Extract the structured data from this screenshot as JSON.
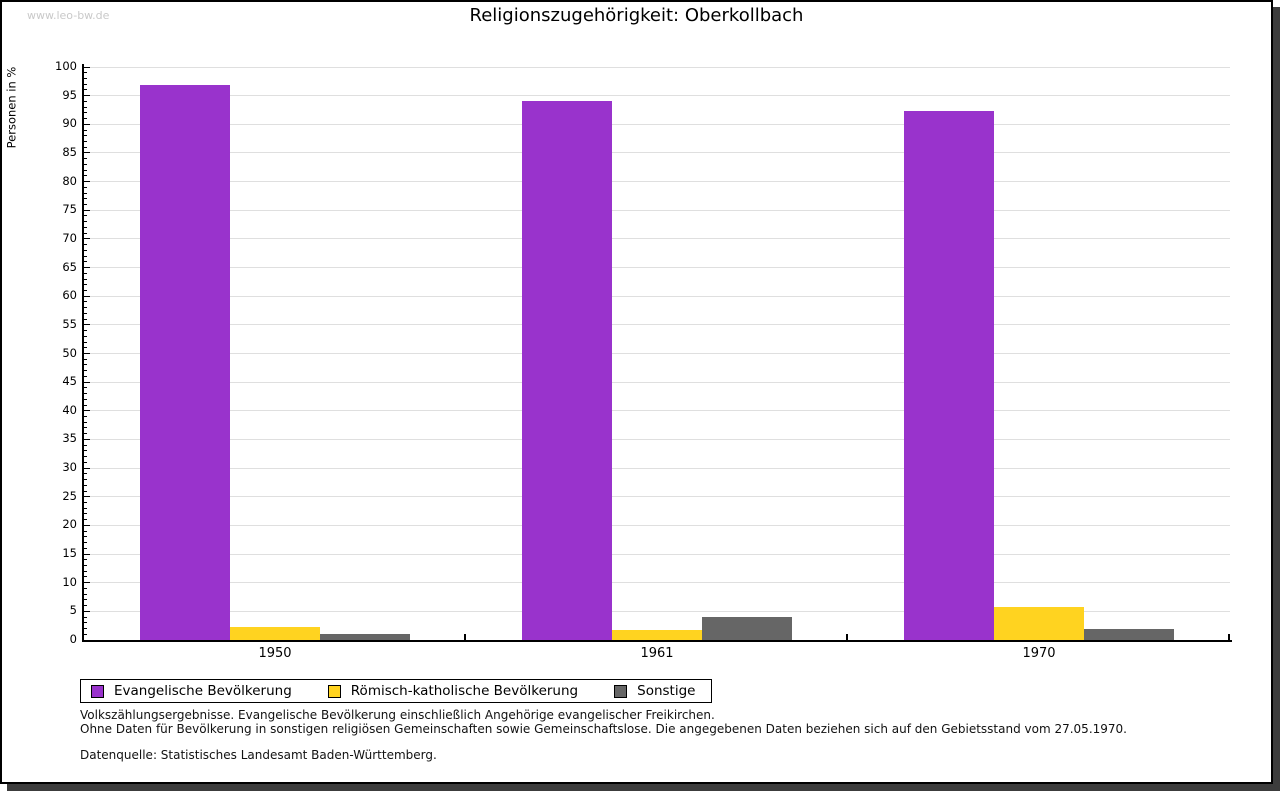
{
  "watermark": "www.leo-bw.de",
  "chart_data": {
    "type": "bar",
    "title": "Religionszugehörigkeit: Oberkollbach",
    "ylabel": "Personen in %",
    "xlabel": "",
    "categories": [
      "1950",
      "1961",
      "1970"
    ],
    "series": [
      {
        "name": "Evangelische Bevölkerung",
        "color": "#9933CC",
        "values": [
          96.8,
          94.1,
          92.3
        ]
      },
      {
        "name": "Römisch-katholische Bevölkerung",
        "color": "#FFD320",
        "values": [
          2.3,
          1.8,
          5.7
        ]
      },
      {
        "name": "Sonstige",
        "color": "#666666",
        "values": [
          1.0,
          4.1,
          2.0
        ]
      }
    ],
    "ylim": [
      0,
      100
    ],
    "ytick_major": 5,
    "ytick_minor": 1,
    "grid": "horizontal-major",
    "gridline_color": "#dfdfdf",
    "legend_position": "bottom-left"
  },
  "footnotes": [
    "Volkszählungsergebnisse. Evangelische Bevölkerung einschließlich Angehörige evangelischer Freikirchen.",
    "Ohne Daten für Bevölkerung in sonstigen religiösen Gemeinschaften sowie Gemeinschaftslose. Die angegebenen Daten beziehen sich auf den Gebietsstand vom 27.05.1970."
  ],
  "source": "Datenquelle: Statistisches Landesamt Baden-Württemberg."
}
